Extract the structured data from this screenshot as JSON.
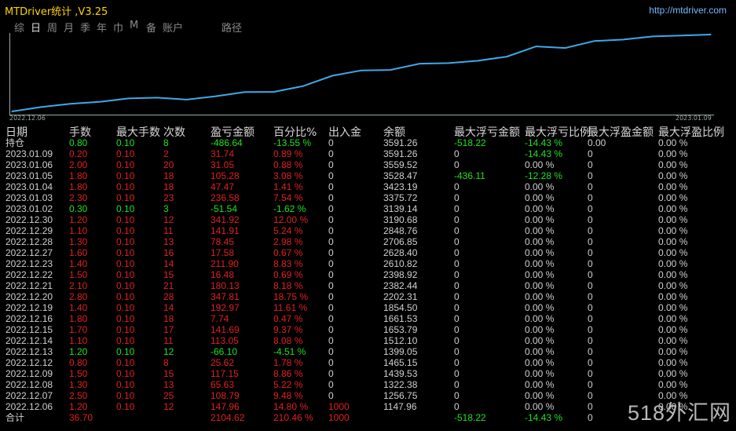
{
  "app": {
    "title": "MTDriver统计 ,V3.25",
    "url": "http://mtdriver.com"
  },
  "tabs": [
    {
      "label": "综",
      "active": false
    },
    {
      "label": "日",
      "active": true
    },
    {
      "label": "周",
      "active": false
    },
    {
      "label": "月",
      "active": false
    },
    {
      "label": "季",
      "active": false
    },
    {
      "label": "年",
      "active": false
    },
    {
      "label": "巾",
      "active": false
    },
    {
      "label": "M",
      "active": false
    },
    {
      "label": "备",
      "active": false
    },
    {
      "label": "账户",
      "active": false
    },
    {
      "label": "路径",
      "active": false
    }
  ],
  "chart_data": {
    "type": "line",
    "x_start_label": "2022.12.06",
    "x_end_label": "2023.01.09",
    "x": [
      "2022.12.06",
      "2022.12.07",
      "2022.12.08",
      "2022.12.09",
      "2022.12.12",
      "2022.12.13",
      "2022.12.14",
      "2022.12.15",
      "2022.12.16",
      "2022.12.19",
      "2022.12.20",
      "2022.12.21",
      "2022.12.22",
      "2022.12.23",
      "2022.12.27",
      "2022.12.28",
      "2022.12.29",
      "2022.12.30",
      "2023.01.02",
      "2023.01.03",
      "2023.01.04",
      "2023.01.05",
      "2023.01.06",
      "2023.01.09",
      "2023.01.09"
    ],
    "values": [
      1000,
      1147.96,
      1256.75,
      1322.38,
      1439.53,
      1465.15,
      1399.05,
      1512.1,
      1653.79,
      1661.53,
      1854.5,
      2202.31,
      2382.44,
      2398.92,
      2610.82,
      2628.4,
      2706.85,
      2848.76,
      3190.68,
      3139.14,
      3375.72,
      3423.19,
      3528.47,
      3559.52,
      3591.26
    ],
    "color": "#3fa9e8"
  },
  "table": {
    "headers": [
      "日期",
      "手数",
      "最大手数",
      "次数",
      "盈亏金额",
      "百分比%",
      "出入金",
      "余额",
      "最大浮亏金额",
      "最大浮亏比例",
      "最大浮盈金额",
      "最大浮盈比例"
    ],
    "rows": [
      [
        "持仓",
        "0.80",
        "0.10",
        "8",
        "-486.64",
        "-13.55 %",
        "0",
        "3591.26",
        "-518.22",
        "-14.43 %",
        "0.00",
        "0.00 %"
      ],
      [
        "2023.01.09",
        "0.20",
        "0.10",
        "2",
        "31.74",
        "0.89 %",
        "0",
        "3591.26",
        "0",
        "-14.43 %",
        "0",
        "0.00 %"
      ],
      [
        "2023.01.06",
        "2.00",
        "0.10",
        "20",
        "31.05",
        "0.88 %",
        "0",
        "3559.52",
        "0",
        "0.00 %",
        "0",
        "0.00 %"
      ],
      [
        "2023.01.05",
        "1.80",
        "0.10",
        "18",
        "105.28",
        "3.08 %",
        "0",
        "3528.47",
        "-436.11",
        "-12.28 %",
        "0",
        "0.00 %"
      ],
      [
        "2023.01.04",
        "1.80",
        "0.10",
        "18",
        "47.47",
        "1.41 %",
        "0",
        "3423.19",
        "0",
        "0.00 %",
        "0",
        "0.00 %"
      ],
      [
        "2023.01.03",
        "2.30",
        "0.10",
        "23",
        "236.58",
        "7.54 %",
        "0",
        "3375.72",
        "0",
        "0.00 %",
        "0",
        "0.00 %"
      ],
      [
        "2023.01.02",
        "0.30",
        "0.10",
        "3",
        "-51.54",
        "-1.62 %",
        "0",
        "3139.14",
        "0",
        "0.00 %",
        "0",
        "0.00 %"
      ],
      [
        "2022.12.30",
        "1.20",
        "0.10",
        "12",
        "341.92",
        "12.00 %",
        "0",
        "3190.68",
        "0",
        "0.00 %",
        "0",
        "0.00 %"
      ],
      [
        "2022.12.29",
        "1.10",
        "0.10",
        "11",
        "141.91",
        "5.24 %",
        "0",
        "2848.76",
        "0",
        "0.00 %",
        "0",
        "0.00 %"
      ],
      [
        "2022.12.28",
        "1.30",
        "0.10",
        "13",
        "78.45",
        "2.98 %",
        "0",
        "2706.85",
        "0",
        "0.00 %",
        "0",
        "0.00 %"
      ],
      [
        "2022.12.27",
        "1.60",
        "0.10",
        "16",
        "17.58",
        "0.67 %",
        "0",
        "2628.40",
        "0",
        "0.00 %",
        "0",
        "0.00 %"
      ],
      [
        "2022.12.23",
        "1.40",
        "0.10",
        "14",
        "211.90",
        "8.83 %",
        "0",
        "2610.82",
        "0",
        "0.00 %",
        "0",
        "0.00 %"
      ],
      [
        "2022.12.22",
        "1.50",
        "0.10",
        "15",
        "16.48",
        "0.69 %",
        "0",
        "2398.92",
        "0",
        "0.00 %",
        "0",
        "0.00 %"
      ],
      [
        "2022.12.21",
        "2.10",
        "0.10",
        "21",
        "180.13",
        "8.18 %",
        "0",
        "2382.44",
        "0",
        "0.00 %",
        "0",
        "0.00 %"
      ],
      [
        "2022.12.20",
        "2.80",
        "0.10",
        "28",
        "347.81",
        "18.75 %",
        "0",
        "2202.31",
        "0",
        "0.00 %",
        "0",
        "0.00 %"
      ],
      [
        "2022.12.19",
        "1.40",
        "0.10",
        "14",
        "192.97",
        "11.61 %",
        "0",
        "1854.50",
        "0",
        "0.00 %",
        "0",
        "0.00 %"
      ],
      [
        "2022.12.16",
        "1.80",
        "0.10",
        "18",
        "7.74",
        "0.47 %",
        "0",
        "1661.53",
        "0",
        "0.00 %",
        "0",
        "0.00 %"
      ],
      [
        "2022.12.15",
        "1.70",
        "0.10",
        "17",
        "141.69",
        "9.37 %",
        "0",
        "1653.79",
        "0",
        "0.00 %",
        "0",
        "0.00 %"
      ],
      [
        "2022.12.14",
        "1.10",
        "0.10",
        "11",
        "113.05",
        "8.08 %",
        "0",
        "1512.10",
        "0",
        "0.00 %",
        "0",
        "0.00 %"
      ],
      [
        "2022.12.13",
        "1.20",
        "0.10",
        "12",
        "-66.10",
        "-4.51 %",
        "0",
        "1399.05",
        "0",
        "0.00 %",
        "0",
        "0.00 %"
      ],
      [
        "2022.12.12",
        "0.80",
        "0.10",
        "8",
        "25.62",
        "1.78 %",
        "0",
        "1465.15",
        "0",
        "0.00 %",
        "0",
        "0.00 %"
      ],
      [
        "2022.12.09",
        "1.50",
        "0.10",
        "15",
        "117.15",
        "8.86 %",
        "0",
        "1439.53",
        "0",
        "0.00 %",
        "0",
        "0.00 %"
      ],
      [
        "2022.12.08",
        "1.30",
        "0.10",
        "13",
        "65.63",
        "5.22 %",
        "0",
        "1322.38",
        "0",
        "0.00 %",
        "0",
        "0.00 %"
      ],
      [
        "2022.12.07",
        "2.50",
        "0.10",
        "25",
        "108.79",
        "9.48 %",
        "0",
        "1256.75",
        "0",
        "0.00 %",
        "0",
        "0.00 %"
      ],
      [
        "2022.12.06",
        "1.20",
        "0.10",
        "12",
        "147.96",
        "14.80 %",
        "1000",
        "1147.96",
        "0",
        "0.00 %",
        "0",
        "0.00 %"
      ]
    ],
    "total": [
      "合计",
      "36.70",
      "",
      "",
      "2104.62",
      "210.46 %",
      "1000",
      "",
      "-518.22",
      "-14.43 %",
      "0",
      ""
    ]
  },
  "watermark": "518外汇网",
  "colors": {
    "profit": "#e02020",
    "loss": "#20e020",
    "line": "#3fa9e8",
    "title": "#ffd400"
  }
}
